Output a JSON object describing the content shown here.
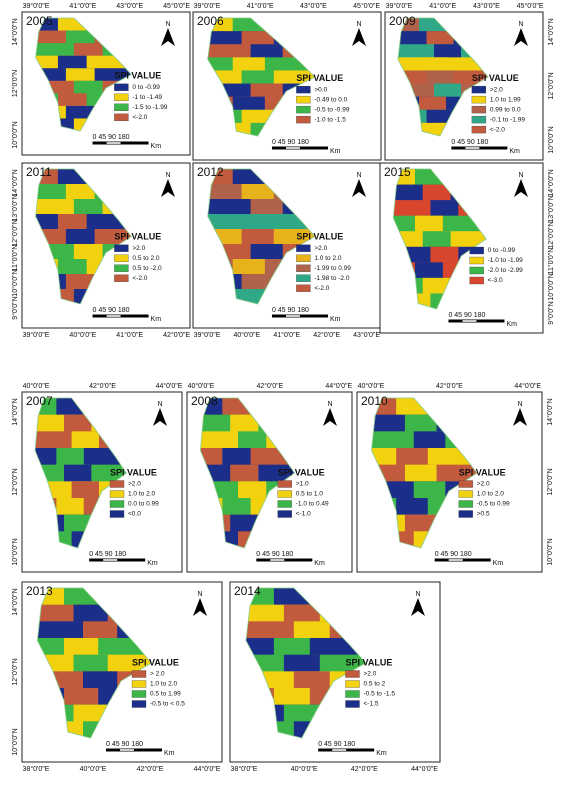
{
  "panels": [
    {
      "year": "2005",
      "x_labels": [
        "39°0'0\"E",
        "41°0'0\"E",
        "43°0'0\"E",
        "45°0'0\"E"
      ],
      "y_labels": [
        "14°0'0\"N",
        "12°0'0\"N",
        "10°0'0\"N"
      ],
      "legend_title": "SPI VALUE",
      "legend": [
        {
          "label": "0 to -0.99",
          "color": "#1b2f8a"
        },
        {
          "label": "-1 to -1.49",
          "color": "#f2d10f"
        },
        {
          "label": "-1.5 to -1.99",
          "color": "#3cb648"
        },
        {
          "label": "<-2.0",
          "color": "#c25a3e"
        }
      ],
      "scale": "0 45 90 180",
      "unit": "Km",
      "north": "N"
    },
    {
      "year": "2006",
      "x_labels": [
        "39°0'0\"E",
        "41°0'0\"E",
        "43°0'0\"E",
        "45°0'0\"E"
      ],
      "y_labels": [],
      "legend_title": "SPI VALUE",
      "legend": [
        {
          "label": ">0.0",
          "color": "#1b2f8a"
        },
        {
          "label": "-0.49 to 0.0",
          "color": "#f2d10f"
        },
        {
          "label": "-0.5 to -0.99",
          "color": "#3cb648"
        },
        {
          "label": "-1.0 to -1.5",
          "color": "#c25a3e"
        }
      ],
      "scale": "0 45 90 180",
      "unit": "Km",
      "north": "N"
    },
    {
      "year": "2009",
      "x_labels": [
        "39°0'0\"E",
        "41°0'0\"E",
        "43°0'0\"E",
        "45°0'0\"E"
      ],
      "y_labels": [
        "14°0'0\"N",
        "12°0'0\"N",
        "10°0'0\"N"
      ],
      "legend_title": "SPI VALUE",
      "legend": [
        {
          "label": ">2.0",
          "color": "#1b2f8a"
        },
        {
          "label": "1.0 to 1.99",
          "color": "#f2d10f"
        },
        {
          "label": "0.99 to 0.0",
          "color": "#b0634a"
        },
        {
          "label": "-0.1 to -1.99",
          "color": "#2fa888"
        },
        {
          "label": "<-2.0",
          "color": "#c25a3e"
        }
      ],
      "scale": "0 45 90 180",
      "unit": "Km",
      "north": "N"
    },
    {
      "year": "2011",
      "x_labels": [
        "39°0'0\"E",
        "40°0'0\"E",
        "41°0'0\"E",
        "42°0'0\"E"
      ],
      "y_labels": [
        "14°0'0\"N",
        "13°0'0\"N",
        "12°0'0\"N",
        "11°0'0\"N",
        "10°0'0\"N",
        "9°0'0\"N"
      ],
      "legend_title": "SPI VALUE",
      "legend": [
        {
          "label": ">2.0",
          "color": "#1b2f8a"
        },
        {
          "label": "0.5 to 2.0",
          "color": "#f2d10f"
        },
        {
          "label": "0.5 to -2.0",
          "color": "#3cb648"
        },
        {
          "label": "<-2.0",
          "color": "#c25a3e"
        }
      ],
      "scale": "0 45 90 180",
      "unit": "Km",
      "north": "N"
    },
    {
      "year": "2012",
      "x_labels": [
        "39°0'0\"E",
        "40°0'0\"E",
        "41°0'0\"E",
        "42°0'0\"E",
        "43°0'0\"E"
      ],
      "y_labels": [],
      "legend_title": "SPI VALUE",
      "legend": [
        {
          "label": ">2.0",
          "color": "#1b2f8a"
        },
        {
          "label": "1.0 to 2.0",
          "color": "#e8b21a"
        },
        {
          "label": "-1.99 to 0.99",
          "color": "#b0634a"
        },
        {
          "label": "-1.98 to -2.0",
          "color": "#2fa888"
        },
        {
          "label": "<-2.0",
          "color": "#c25a3e"
        }
      ],
      "scale": "0 45 90 180",
      "unit": "Km",
      "north": "N"
    },
    {
      "year": "2015",
      "x_labels": [],
      "y_labels": [
        "14°0'0\"N",
        "13°0'0\"N",
        "12°0'0\"N",
        "11°0'0\"N",
        "10°0'0\"N",
        "9°0'0\"N"
      ],
      "legend_title": "",
      "legend": [
        {
          "label": "0 to -0.99",
          "color": "#1b2f8a"
        },
        {
          "label": "-1.0 to -1.99",
          "color": "#f2d10f"
        },
        {
          "label": "-2.0 to -2.99",
          "color": "#3cb648"
        },
        {
          "label": "<-3.0",
          "color": "#d9462e"
        }
      ],
      "scale": "0 45 90 180",
      "unit": "Km",
      "north": "N"
    },
    {
      "year": "2007",
      "x_labels": [
        "40°0'0\"E",
        "42°0'0\"E",
        "44°0'0\"E"
      ],
      "y_labels": [
        "14°0'0\"N",
        "12°0'0\"N",
        "10°0'0\"N"
      ],
      "legend_title": "SPI VALUE",
      "legend": [
        {
          "label": ">2.0",
          "color": "#c25a3e"
        },
        {
          "label": "1.0 to 2.0",
          "color": "#f2d10f"
        },
        {
          "label": "0.0 to 0.99",
          "color": "#3cb648"
        },
        {
          "label": "<0.0",
          "color": "#1b2f8a"
        }
      ],
      "scale": "0 45 90 180",
      "unit": "Km",
      "north": "N"
    },
    {
      "year": "2008",
      "x_labels": [
        "40°0'0\"E",
        "42°0'0\"E",
        "44°0'0\"E"
      ],
      "y_labels": [],
      "legend_title": "SPI VALUE",
      "legend": [
        {
          "label": ">1.0",
          "color": "#c25a3e"
        },
        {
          "label": "0.5 to 1.0",
          "color": "#f2d10f"
        },
        {
          "label": "-1.0 to 0.49",
          "color": "#3cb648"
        },
        {
          "label": "<-1.0",
          "color": "#1b2f8a"
        }
      ],
      "scale": "0 45 90 180",
      "unit": "Km",
      "north": "N"
    },
    {
      "year": "2010",
      "x_labels": [
        "40°0'0\"E",
        "42°0'0\"E",
        "44°0'0\"E"
      ],
      "y_labels": [
        "14°0'0\"N",
        "12°0'0\"N",
        "10°0'0\"N"
      ],
      "legend_title": "SPI VALUE",
      "legend": [
        {
          "label": ">2.0",
          "color": "#c25a3e"
        },
        {
          "label": "1.0 to 2.0",
          "color": "#f2d10f"
        },
        {
          "label": "-0.5 to 0.99",
          "color": "#3cb648"
        },
        {
          "label": ">0.5",
          "color": "#1b2f8a"
        }
      ],
      "scale": "0 45 90 180",
      "unit": "Km",
      "north": "N"
    },
    {
      "year": "2013",
      "x_labels": [
        "38°0'0\"E",
        "40°0'0\"E",
        "42°0'0\"E",
        "44°0'0\"E"
      ],
      "y_labels": [
        "14°0'0\"N",
        "12°0'0\"N",
        "10°0'0\"N"
      ],
      "legend_title": "SPI VALUE",
      "legend": [
        {
          "label": "> 2.0",
          "color": "#c25a3e"
        },
        {
          "label": "1.0 to 2.0",
          "color": "#f2d10f"
        },
        {
          "label": "0.5 to 1.99",
          "color": "#3cb648"
        },
        {
          "label": "-0.5 to < 0.5",
          "color": "#1b2f8a"
        }
      ],
      "scale": "0 45 90 180",
      "unit": "Km",
      "north": "N"
    },
    {
      "year": "2014",
      "x_labels": [
        "38°0'0\"E",
        "40°0'0\"E",
        "42°0'0\"E",
        "44°0'0\"E"
      ],
      "y_labels": [],
      "legend_title": "SPI VALUE",
      "legend": [
        {
          "label": ">2.0",
          "color": "#c25a3e"
        },
        {
          "label": "0.5 to 2",
          "color": "#f2d10f"
        },
        {
          "label": "-0.5 to -1.5",
          "color": "#3cb648"
        },
        {
          "label": "<-1.5",
          "color": "#1b2f8a"
        }
      ],
      "scale": "0 45 90 180",
      "unit": "Km",
      "north": "N"
    }
  ]
}
